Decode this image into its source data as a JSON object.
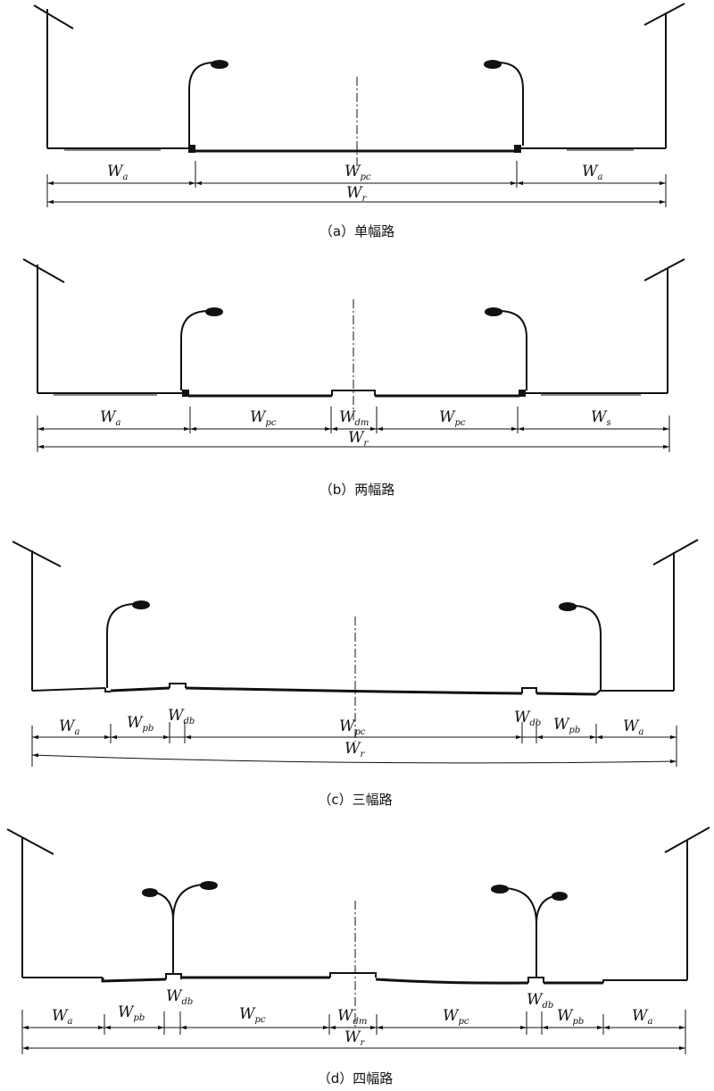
{
  "panels": [
    {
      "id": "a",
      "caption": "（a）单幅路",
      "dims": [
        {
          "main": "W",
          "sub": "a"
        },
        {
          "main": "W",
          "sub": "pc"
        },
        {
          "main": "W",
          "sub": "a"
        }
      ],
      "total": {
        "main": "W",
        "sub": "r"
      }
    },
    {
      "id": "b",
      "caption": "（b）两幅路",
      "dims": [
        {
          "main": "W",
          "sub": "a"
        },
        {
          "main": "W",
          "sub": "pc"
        },
        {
          "main": "W",
          "sub": "dm"
        },
        {
          "main": "W",
          "sub": "pc"
        },
        {
          "main": "W",
          "sub": "s"
        }
      ],
      "total": {
        "main": "W",
        "sub": "r"
      }
    },
    {
      "id": "c",
      "caption": "（c）三幅路",
      "dims": [
        {
          "main": "W",
          "sub": "a"
        },
        {
          "main": "W",
          "sub": "pb"
        },
        {
          "main": "W",
          "sub": "db"
        },
        {
          "main": "W",
          "sub": "pc"
        },
        {
          "main": "W",
          "sub": "db"
        },
        {
          "main": "W",
          "sub": "pb"
        },
        {
          "main": "W",
          "sub": "a"
        }
      ],
      "total": {
        "main": "W",
        "sub": "r"
      }
    },
    {
      "id": "d",
      "caption": "（d）四幅路",
      "dims": [
        {
          "main": "W",
          "sub": "a"
        },
        {
          "main": "W",
          "sub": "pb"
        },
        {
          "main": "W",
          "sub": "db"
        },
        {
          "main": "W",
          "sub": "pc"
        },
        {
          "main": "W",
          "sub": "dm"
        },
        {
          "main": "W",
          "sub": "pc"
        },
        {
          "main": "W",
          "sub": "db"
        },
        {
          "main": "W",
          "sub": "pb"
        },
        {
          "main": "W",
          "sub": "a"
        }
      ],
      "total": {
        "main": "W",
        "sub": "r"
      }
    }
  ],
  "colors": {
    "ink": "#111111",
    "background": "#ffffff"
  }
}
